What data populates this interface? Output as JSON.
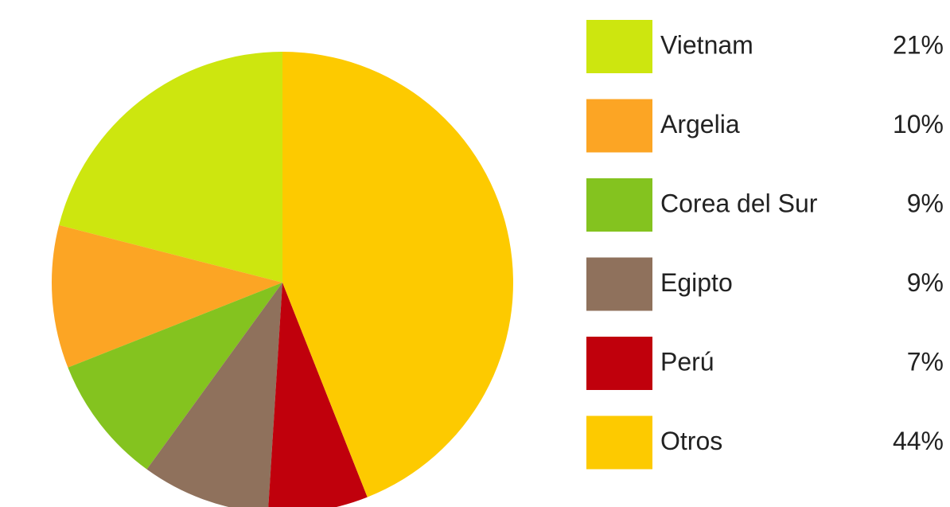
{
  "chart_data": {
    "type": "pie",
    "categories": [
      "Vietnam",
      "Argelia",
      "Corea del Sur",
      "Egipto",
      "Perú",
      "Otros"
    ],
    "values": [
      21,
      10,
      9,
      9,
      7,
      44
    ],
    "value_labels": [
      "21%",
      "10%",
      "9%",
      "9%",
      "7%",
      "44%"
    ],
    "colors": [
      "#cde60f",
      "#fca524",
      "#84c31f",
      "#8f715c",
      "#c0000c",
      "#fdca00"
    ],
    "direction": "counterclockwise",
    "legend": "right"
  }
}
